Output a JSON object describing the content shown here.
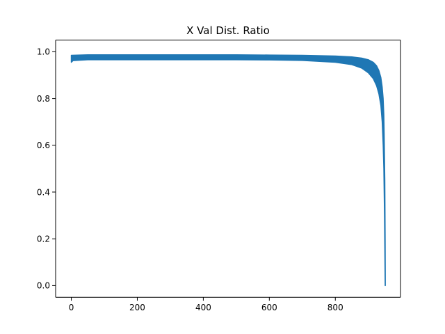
{
  "chart_data": {
    "type": "line",
    "title": "X Val Dist. Ratio",
    "xlabel": "",
    "ylabel": "",
    "xlim": [
      -47.5,
      997.5
    ],
    "ylim": [
      -0.05,
      1.05
    ],
    "grid": false,
    "legend": "none",
    "x_ticks": [
      0,
      200,
      400,
      600,
      800
    ],
    "y_ticks": [
      0.0,
      0.2,
      0.4,
      0.6,
      0.8,
      1.0
    ],
    "x_tick_labels": [
      "0",
      "200",
      "400",
      "600",
      "800"
    ],
    "y_tick_labels": [
      "0.0",
      "0.2",
      "0.4",
      "0.6",
      "0.8",
      "1.0"
    ],
    "series": [
      {
        "color": "#1f77b4",
        "band_upper": [
          [
            0,
            0.985
          ],
          [
            50,
            0.987
          ],
          [
            100,
            0.987
          ],
          [
            200,
            0.987
          ],
          [
            300,
            0.987
          ],
          [
            400,
            0.987
          ],
          [
            500,
            0.987
          ],
          [
            600,
            0.986
          ],
          [
            700,
            0.985
          ],
          [
            800,
            0.982
          ],
          [
            850,
            0.978
          ],
          [
            880,
            0.973
          ],
          [
            900,
            0.966
          ],
          [
            915,
            0.955
          ],
          [
            925,
            0.94
          ],
          [
            932,
            0.92
          ],
          [
            938,
            0.89
          ],
          [
            942,
            0.85
          ],
          [
            945,
            0.8
          ],
          [
            947,
            0.73
          ],
          [
            948,
            0.65
          ],
          [
            949,
            0.55
          ],
          [
            950,
            0.45
          ],
          [
            951,
            0.2
          ],
          [
            951.5,
            0.0
          ]
        ],
        "band_lower": [
          [
            0,
            0.955
          ],
          [
            5,
            0.962
          ],
          [
            50,
            0.966
          ],
          [
            100,
            0.966
          ],
          [
            200,
            0.966
          ],
          [
            300,
            0.966
          ],
          [
            400,
            0.966
          ],
          [
            500,
            0.966
          ],
          [
            600,
            0.965
          ],
          [
            700,
            0.963
          ],
          [
            800,
            0.955
          ],
          [
            850,
            0.945
          ],
          [
            880,
            0.93
          ],
          [
            900,
            0.91
          ],
          [
            915,
            0.885
          ],
          [
            925,
            0.855
          ],
          [
            932,
            0.82
          ],
          [
            938,
            0.77
          ],
          [
            942,
            0.7
          ],
          [
            945,
            0.6
          ],
          [
            947,
            0.5
          ],
          [
            948,
            0.4
          ],
          [
            949,
            0.3
          ],
          [
            950,
            0.15
          ],
          [
            951,
            0.0
          ]
        ]
      }
    ]
  }
}
